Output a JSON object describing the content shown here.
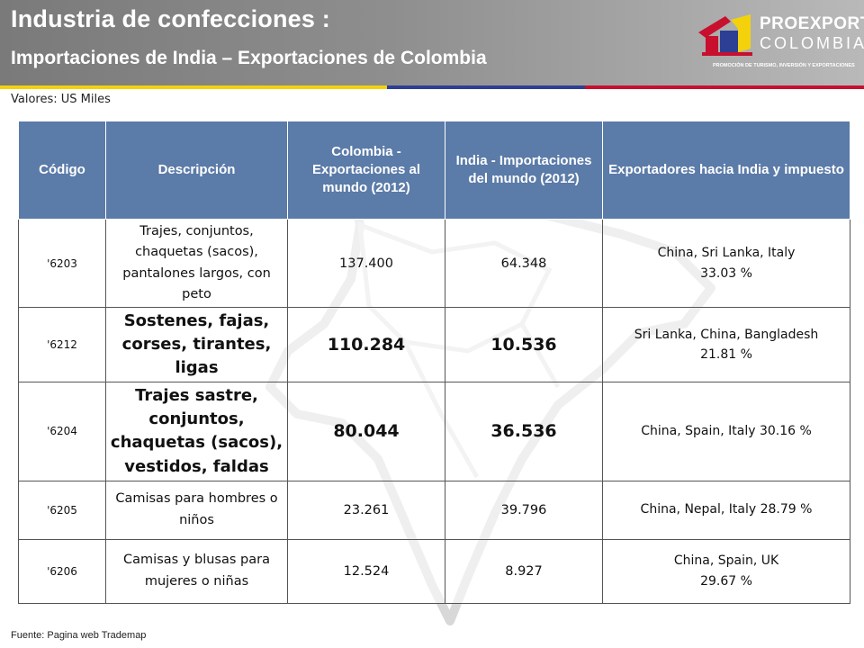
{
  "header": {
    "title": "Industria de confecciones :",
    "subtitle": "Importaciones de India – Exportaciones de Colombia"
  },
  "logo": {
    "name_line1": "PROEXPORT",
    "name_line2": "COLOMBIA",
    "tagline": "PROMOCIÓN DE TURISMO, INVERSIÓN Y EXPORTACIONES"
  },
  "units_note": "Valores: US Miles",
  "table": {
    "headers": [
      "Código",
      "Descripción",
      "Colombia - Exportaciones al mundo (2012)",
      "India - Importaciones del mundo (2012)",
      "Exportadores hacia India  y impuesto"
    ],
    "rows": [
      {
        "code": "'6203",
        "description": "Trajes, conjuntos, chaquetas (sacos), pantalones largos, con peto",
        "colombia_exports": "137.400",
        "india_imports": "64.348",
        "exporters_line1": "China, Sri Lanka, Italy",
        "exporters_line2": "33.03 %"
      },
      {
        "code": "'6212",
        "description": "Sostenes, fajas, corses, tirantes, ligas",
        "colombia_exports": "110.284",
        "india_imports": "10.536",
        "exporters_line1": "Sri Lanka, China, Bangladesh",
        "exporters_line2": "21.81 %"
      },
      {
        "code": "'6204",
        "description": "Trajes sastre, conjuntos, chaquetas (sacos), vestidos, faldas",
        "colombia_exports": "80.044",
        "india_imports": "36.536",
        "exporters_line1": "China, Spain, Italy 30.16 %",
        "exporters_line2": ""
      },
      {
        "code": "'6205",
        "description": "Camisas para hombres o niños",
        "colombia_exports": "23.261",
        "india_imports": "39.796",
        "exporters_line1": "China, Nepal, Italy 28.79 %",
        "exporters_line2": ""
      },
      {
        "code": "'6206",
        "description": "Camisas y blusas para mujeres o niñas",
        "colombia_exports": "12.524",
        "india_imports": "8.927",
        "exporters_line1": "China, Spain, UK",
        "exporters_line2": "29.67 %"
      }
    ]
  },
  "source": "Fuente: Pagina web Trademap",
  "colors": {
    "header_gray": "#8e8e8e",
    "table_header_blue": "#5b7ba8",
    "stripe_yellow": "#f3d20c",
    "stripe_blue": "#2c3f94",
    "stripe_red": "#c8102e"
  }
}
